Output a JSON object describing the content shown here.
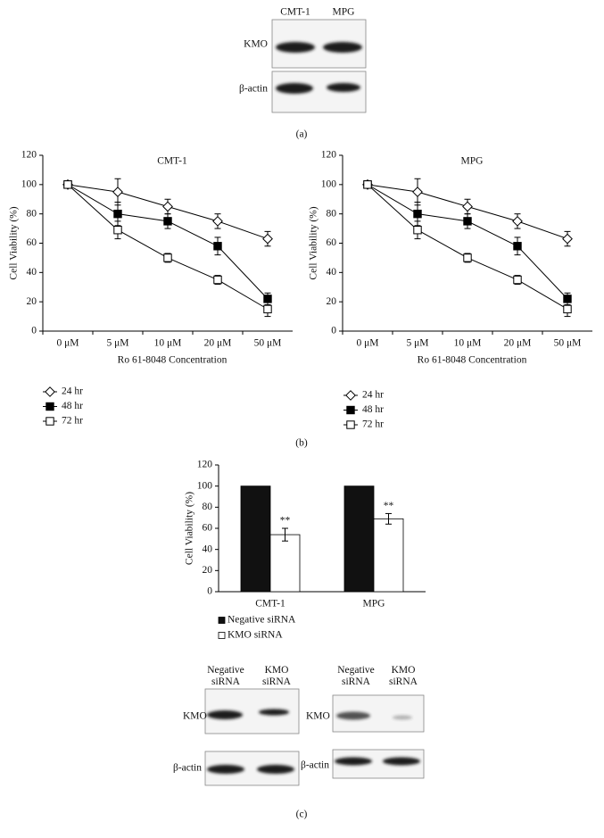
{
  "panel_a": {
    "columns": [
      "CMT-1",
      "MPG"
    ],
    "rows": [
      "KMO",
      "β-actin"
    ],
    "label": "(a)"
  },
  "panel_b": {
    "label": "(b)"
  },
  "panel_c": {
    "left": {
      "columns": [
        [
          "Negative",
          "siRNA"
        ],
        [
          "KMO",
          "siRNA"
        ]
      ],
      "rows": [
        "KMO",
        "β-actin"
      ]
    },
    "right": {
      "columns": [
        [
          "Negative",
          "siRNA"
        ],
        [
          "KMO",
          "siRNA"
        ]
      ],
      "rows": [
        "KMO",
        "β-actin"
      ]
    },
    "label": "(c)"
  },
  "chart_data": [
    {
      "type": "line",
      "title": "CMT-1",
      "x_label": "Ro 61-8048 Concentration",
      "y_label": "Cell Viability (%)",
      "categories": [
        "0 μM",
        "5 μM",
        "10 μM",
        "20 μM",
        "50 μM"
      ],
      "ylim": [
        0,
        120
      ],
      "yticks": [
        0,
        20,
        40,
        60,
        80,
        100,
        120
      ],
      "legend": "below-left",
      "series": [
        {
          "name": "24 hr",
          "color": "#000000",
          "marker": "diamond-open",
          "values": [
            100,
            95,
            85,
            75,
            63
          ],
          "errors": [
            0,
            9,
            5,
            5,
            5
          ]
        },
        {
          "name": "48 hr",
          "color": "#000000",
          "marker": "square-filled",
          "values": [
            100,
            80,
            75,
            58,
            22
          ],
          "errors": [
            0,
            8,
            5,
            6,
            4
          ]
        },
        {
          "name": "72 hr",
          "color": "#000000",
          "marker": "square-open",
          "values": [
            100,
            69,
            50,
            35,
            15
          ],
          "errors": [
            0,
            6,
            3,
            3,
            5
          ]
        }
      ]
    },
    {
      "type": "line",
      "title": "MPG",
      "x_label": "Ro 61-8048 Concentration",
      "y_label": "Cell Viability (%)",
      "categories": [
        "0 μM",
        "5 μM",
        "10 μM",
        "20 μM",
        "50 μM"
      ],
      "ylim": [
        0,
        120
      ],
      "yticks": [
        0,
        20,
        40,
        60,
        80,
        100,
        120
      ],
      "legend": "below-left",
      "series": [
        {
          "name": "24 hr",
          "color": "#000000",
          "marker": "diamond-open",
          "values": [
            100,
            95,
            85,
            75,
            63
          ],
          "errors": [
            0,
            9,
            5,
            5,
            5
          ]
        },
        {
          "name": "48 hr",
          "color": "#000000",
          "marker": "square-filled",
          "values": [
            100,
            80,
            75,
            58,
            22
          ],
          "errors": [
            0,
            8,
            5,
            6,
            4
          ]
        },
        {
          "name": "72 hr",
          "color": "#000000",
          "marker": "square-open",
          "values": [
            100,
            69,
            50,
            35,
            15
          ],
          "errors": [
            0,
            6,
            3,
            3,
            5
          ]
        }
      ]
    },
    {
      "type": "bar",
      "y_label": "Cell Viability (%)",
      "categories": [
        "CMT-1",
        "MPG"
      ],
      "ylim": [
        0,
        120
      ],
      "yticks": [
        0,
        20,
        40,
        60,
        80,
        100,
        120
      ],
      "legend": "below-left",
      "series": [
        {
          "name": "Negative siRNA",
          "color": "#111111",
          "values": [
            100,
            100
          ],
          "errors": [
            0,
            0
          ]
        },
        {
          "name": "KMO siRNA",
          "color": "#ffffff",
          "values": [
            54,
            69
          ],
          "errors": [
            6,
            5
          ],
          "annotations": [
            "**",
            "**"
          ]
        }
      ]
    }
  ]
}
